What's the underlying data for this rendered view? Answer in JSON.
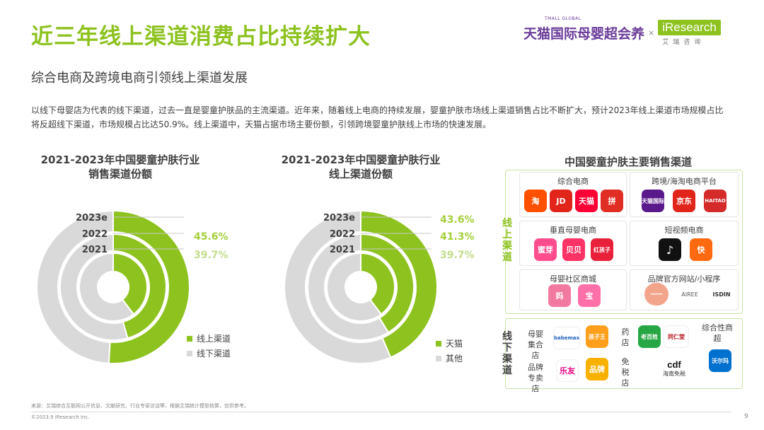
{
  "header": {
    "title": "近三年线上渠道消费占比持续扩大",
    "subtitle": "综合电商及跨境电商引领线上渠道发展",
    "paragraph": "以线下母婴店为代表的线下渠道，过去一直是婴童护肤品的主流渠道。近年来，随着线上电商的持续发展，婴童护肤市场线上渠道销售占比不断扩大，预计2023年线上渠道市场规模占比将反超线下渠道，市场规模占比达50.9%。线上渠道中，天猫占据市场主要份额，引领跨境婴童护肤线上市场的快速发展。"
  },
  "logo": {
    "tmall_global": "TMALL GLOBAL",
    "tmall_text": "天猫国际母婴超会养",
    "x": "×",
    "iresearch": "iResearch",
    "iresearch_cn": "艾瑞咨询"
  },
  "colors": {
    "accent": "#8dc21f",
    "highlight": "#a6cf3c",
    "grey": "#d9d9d9",
    "label_dim": "#c3dd8a"
  },
  "chart_data": [
    {
      "type": "pie",
      "title_line1": "2021-2023年中国婴童护肤行业",
      "title_line2": "销售渠道份额",
      "rings": [
        "2023e",
        "2022",
        "2021"
      ],
      "series": [
        {
          "name": "线上渠道",
          "values": [
            50.9,
            45.6,
            39.7
          ]
        },
        {
          "name": "线下渠道",
          "values": [
            49.1,
            54.4,
            60.3
          ]
        }
      ],
      "labels": [
        "",
        "45.6%",
        "39.7%"
      ],
      "legend": [
        "线上渠道",
        "线下渠道"
      ]
    },
    {
      "type": "pie",
      "title_line1": "2021-2023年中国婴童护肤行业",
      "title_line2": "线上渠道份额",
      "rings": [
        "2023e",
        "2022",
        "2021"
      ],
      "series": [
        {
          "name": "天猫",
          "values": [
            43.6,
            41.3,
            39.7
          ]
        },
        {
          "name": "其他",
          "values": [
            56.4,
            58.7,
            60.3
          ]
        }
      ],
      "labels": [
        "43.6%",
        "41.3%",
        "39.7%"
      ],
      "legend": [
        "天猫",
        "其他"
      ]
    }
  ],
  "channels": {
    "title": "中国婴童护肤主要销售渠道",
    "online_label": "线上渠道",
    "offline_label": "线下渠道",
    "cat1": "综合电商",
    "cat2": "跨境/海淘电商平台",
    "cat3": "垂直母婴电商",
    "cat4": "短视频电商",
    "cat5": "母婴社区商城",
    "cat6": "品牌官方网站/小程序",
    "apps": {
      "taobao": "淘",
      "jd": "JD",
      "tmall": "天猫",
      "pdd": "拼",
      "tmallglobal": "天猫国际",
      "jdworld": "京东",
      "haitao": "HAITAO",
      "mia": "蜜芽",
      "beibei": "贝贝",
      "redbaby": "红孩子",
      "tiktok": "♪",
      "kuaishou": "快",
      "mama": "妈",
      "babytree": "宝",
      "brand1": "━━━━",
      "airee": "AIREE",
      "isdin": "ISDIN",
      "babymax": "babemax",
      "kidswant": "孩子王",
      "leyou": "乐友",
      "pinpai": "品牌",
      "laobaixing": "老百姓",
      "tongrentang": "同仁堂",
      "cdf": "cdf",
      "cdf_sub": "海南免税",
      "walmart": "沃尔玛"
    },
    "off1": "母婴集合店",
    "off2": "品牌专卖店",
    "off3": "药店",
    "off4": "免税店",
    "off5": "综合性商超"
  },
  "footer": {
    "source": "来源：艾瑞综合互联网公开信息、文献研究、行业专家访谈等，根据艾瑞统计模型核算，仅供参考。",
    "copyright": "©2023.9 iResearch Inc.",
    "page": "9"
  }
}
